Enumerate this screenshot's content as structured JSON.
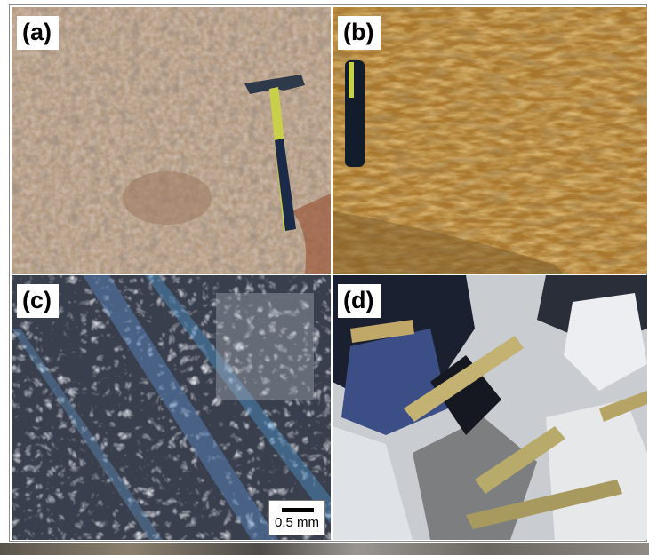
{
  "figure": {
    "panels": [
      {
        "id": "a",
        "label": "(a)",
        "content": "outcrop with hammer"
      },
      {
        "id": "b",
        "label": "(b)",
        "content": "outcrop with hammer handle"
      },
      {
        "id": "c",
        "label": "(c)",
        "content": "micrograph, cross-polarized"
      },
      {
        "id": "d",
        "label": "(d)",
        "content": "micrograph, cross-polarized"
      }
    ],
    "scale_bar": {
      "text": "0.5 mm"
    },
    "colors": {
      "rock_a": "#b49a80",
      "rock_b": "#a9782e",
      "micro_c": "#6f7787",
      "micro_d": "#c9ccd0"
    }
  }
}
